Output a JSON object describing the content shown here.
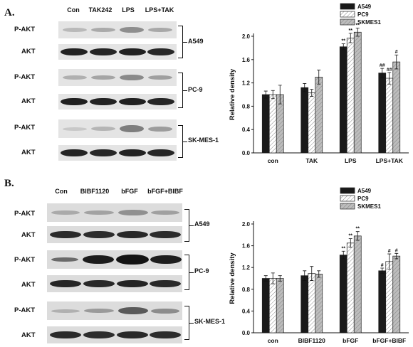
{
  "panel_a": {
    "label": "A.",
    "lanes": [
      "Con",
      "TAK242",
      "LPS",
      "LPS+TAK"
    ],
    "rows": [
      "P-AKT",
      "AKT",
      "P-AKT",
      "AKT",
      "P-AKT",
      "AKT"
    ],
    "cell_lines": [
      "A549",
      "PC-9",
      "SK-MES-1"
    ]
  },
  "panel_b": {
    "label": "B.",
    "lanes": [
      "Con",
      "BIBF1120",
      "bFGF",
      "bFGF+BIBF"
    ],
    "rows": [
      "P-AKT",
      "AKT",
      "P-AKT",
      "AKT",
      "P-AKT",
      "AKT"
    ],
    "cell_lines": [
      "A549",
      "PC-9",
      "SK-MES-1"
    ]
  },
  "colors": {
    "A549": "#1a1a1a",
    "PC9": "#ffffff",
    "SKMES1": "#b0b0b0"
  },
  "chart_data": [
    {
      "type": "bar",
      "categories": [
        "con",
        "TAK",
        "LPS",
        "LPS+TAK"
      ],
      "series": [
        {
          "name": "A549",
          "values": [
            1.0,
            1.12,
            1.82,
            1.37
          ],
          "errors": [
            0.06,
            0.07,
            0.05,
            0.08
          ],
          "annotations": [
            "",
            "",
            "**",
            "##"
          ]
        },
        {
          "name": "PC9",
          "values": [
            1.0,
            1.03,
            1.97,
            1.28
          ],
          "errors": [
            0.07,
            0.06,
            0.08,
            0.1
          ],
          "annotations": [
            "",
            "",
            "**",
            "##"
          ]
        },
        {
          "name": "SKMES1",
          "values": [
            1.0,
            1.3,
            2.07,
            1.56
          ],
          "errors": [
            0.16,
            0.12,
            0.07,
            0.12
          ],
          "annotations": [
            "",
            "",
            "**",
            "#"
          ]
        }
      ],
      "ylabel": "Relative density",
      "xlabel": "",
      "ylim": [
        0.0,
        2.0
      ],
      "yticks": [
        "0.0",
        "0.4",
        "0.8",
        "1.2",
        "1.6",
        "2.0"
      ],
      "legend": "top-right"
    },
    {
      "type": "bar",
      "categories": [
        "con",
        "BIBF1120",
        "bFGF",
        "bFGF+BIBF"
      ],
      "series": [
        {
          "name": "A549",
          "values": [
            1.0,
            1.05,
            1.43,
            1.14
          ],
          "errors": [
            0.05,
            0.09,
            0.07,
            0.05
          ],
          "annotations": [
            "",
            "",
            "**",
            "#"
          ]
        },
        {
          "name": "PC9",
          "values": [
            1.0,
            1.09,
            1.65,
            1.31
          ],
          "errors": [
            0.1,
            0.13,
            0.08,
            0.14
          ],
          "annotations": [
            "",
            "",
            "**",
            "#"
          ]
        },
        {
          "name": "SKMES1",
          "values": [
            1.0,
            1.08,
            1.78,
            1.41
          ],
          "errors": [
            0.05,
            0.06,
            0.08,
            0.05
          ],
          "annotations": [
            "",
            "",
            "**",
            "#"
          ]
        }
      ],
      "ylabel": "Relative density",
      "xlabel": "",
      "ylim": [
        0.0,
        2.0
      ],
      "yticks": [
        "0.0",
        "0.4",
        "0.8",
        "1.2",
        "1.6",
        "2.0"
      ],
      "legend": "top-right"
    }
  ]
}
